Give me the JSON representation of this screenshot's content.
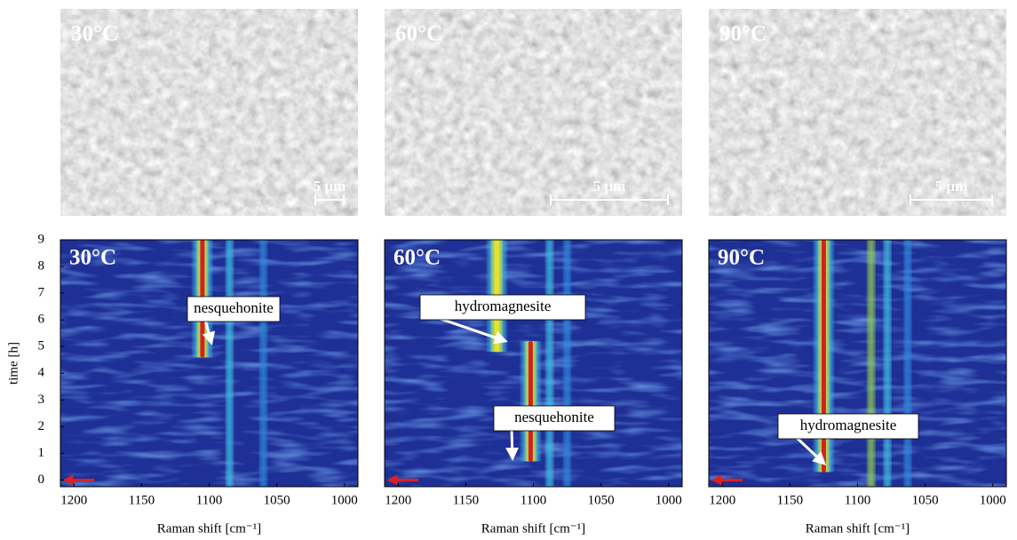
{
  "chart_data": [
    {
      "type": "heatmap",
      "label": "30°C",
      "scale_bar": "5 µm",
      "x_label": "Raman shift [cm⁻¹]",
      "y_label": "time [h]",
      "xlim": [
        1210,
        990
      ],
      "xticks": [
        1200,
        1150,
        1100,
        1050,
        1000
      ],
      "ylim": [
        -0.25,
        9
      ],
      "yticks": [
        0,
        1,
        2,
        3,
        4,
        5,
        6,
        7,
        8,
        9
      ],
      "bands": [
        {
          "x": 1105,
          "t0": 4.6,
          "t1": 9,
          "color": "#d62020"
        },
        {
          "x": 1085,
          "t0": -0.25,
          "t1": 9,
          "color": "#3fc8e8"
        },
        {
          "x": 1060,
          "t0": -0.25,
          "t1": 9,
          "color": "#2f8ee0"
        }
      ],
      "annotations": [
        {
          "text": "nesquehonite"
        }
      ]
    },
    {
      "type": "heatmap",
      "label": "60°C",
      "scale_bar": "5 µm",
      "x_label": "Raman shift [cm⁻¹]",
      "xlim": [
        1210,
        990
      ],
      "xticks": [
        1200,
        1150,
        1100,
        1050,
        1000
      ],
      "ylim": [
        -0.25,
        9
      ],
      "bands": [
        {
          "x": 1127,
          "t0": 4.8,
          "t1": 9,
          "color": "#e8e030"
        },
        {
          "x": 1102,
          "t0": 0.7,
          "t1": 5.2,
          "color": "#d62020"
        },
        {
          "x": 1088,
          "t0": -0.25,
          "t1": 9,
          "color": "#3fc8e8"
        },
        {
          "x": 1075,
          "t0": -0.25,
          "t1": 9,
          "color": "#2f8ee0"
        }
      ],
      "annotations": [
        {
          "text": "hydromagnesite"
        },
        {
          "text": "nesquehonite"
        }
      ]
    },
    {
      "type": "heatmap",
      "label": "90°C",
      "scale_bar": "5 µm",
      "x_label": "Raman shift [cm⁻¹]",
      "xlim": [
        1210,
        990
      ],
      "xticks": [
        1200,
        1150,
        1100,
        1050,
        1000
      ],
      "ylim": [
        -0.25,
        9
      ],
      "bands": [
        {
          "x": 1125,
          "t0": 0.3,
          "t1": 9,
          "color": "#d62020"
        },
        {
          "x": 1090,
          "t0": -0.25,
          "t1": 9,
          "color": "#9ad84a"
        },
        {
          "x": 1078,
          "t0": -0.25,
          "t1": 9,
          "color": "#3fc8e8"
        },
        {
          "x": 1063,
          "t0": -0.25,
          "t1": 9,
          "color": "#2f8ee0"
        }
      ],
      "annotations": [
        {
          "text": "hydromagnesite"
        }
      ]
    }
  ]
}
